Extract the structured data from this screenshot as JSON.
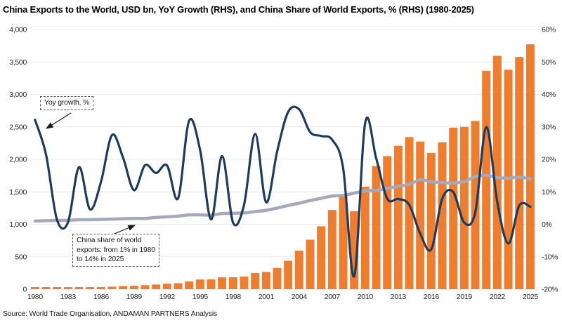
{
  "title": "China Exports to the World, USD bn, YoY Growth (RHS), and China Share of World Exports, % (RHS) (1980-2025)",
  "source": "Source: World Trade Organisation, ANDAMAN PARTNERS Analysis",
  "annotations": {
    "yoy": {
      "text": "Yoy growth, %"
    },
    "share": {
      "line1": "China share of world",
      "line2": "exports: from 1% in 1980",
      "line3": "to 14% in 2025"
    }
  },
  "colors": {
    "bar": "#ED7D31",
    "yoy_line": "#1F3B5C",
    "share_line": "#A6A9BB",
    "grid": "#E8E8E8",
    "axis_text": "#262626",
    "arrow": "#1a1a1a"
  },
  "chart_data": {
    "type": "bar",
    "title": "China Exports to the World, USD bn, YoY Growth (RHS), and China Share of World Exports, % (RHS) (1980-2025)",
    "x": [
      1980,
      1981,
      1982,
      1983,
      1984,
      1985,
      1986,
      1987,
      1988,
      1989,
      1990,
      1991,
      1992,
      1993,
      1994,
      1995,
      1996,
      1997,
      1998,
      1999,
      2000,
      2001,
      2002,
      2003,
      2004,
      2005,
      2006,
      2007,
      2008,
      2009,
      2010,
      2011,
      2012,
      2013,
      2014,
      2015,
      2016,
      2017,
      2018,
      2019,
      2020,
      2021,
      2022,
      2023,
      2024,
      2025
    ],
    "series": [
      {
        "name": "China exports to the world, USD bn",
        "type": "bar",
        "axis": "left",
        "values": [
          18,
          22,
          22,
          22,
          26,
          27,
          31,
          39,
          48,
          53,
          62,
          72,
          85,
          92,
          121,
          149,
          151,
          183,
          184,
          195,
          249,
          266,
          326,
          438,
          593,
          762,
          969,
          1220,
          1431,
          1202,
          1578,
          1898,
          2049,
          2209,
          2342,
          2274,
          2098,
          2263,
          2487,
          2499,
          2591,
          3364,
          3594,
          3380,
          3577,
          3772
        ]
      },
      {
        "name": "YoY growth, %",
        "type": "line",
        "axis": "right",
        "values": [
          32.2,
          21.5,
          1.4,
          0.6,
          17.6,
          4.6,
          13.1,
          27.5,
          20.5,
          10.5,
          18.2,
          15.8,
          18.1,
          8.0,
          31.9,
          22.9,
          1.5,
          21.0,
          0.5,
          6.1,
          27.8,
          6.8,
          22.4,
          34.6,
          35.4,
          28.4,
          27.2,
          26.0,
          17.2,
          -16.0,
          31.3,
          20.3,
          7.9,
          7.8,
          6.0,
          -2.9,
          -7.7,
          7.9,
          9.9,
          0.5,
          3.7,
          29.9,
          6.8,
          -5.9,
          5.8,
          5.4
        ]
      },
      {
        "name": "China share of world exports, %",
        "type": "line",
        "axis": "right",
        "values": [
          1.0,
          1.1,
          1.2,
          1.2,
          1.4,
          1.4,
          1.5,
          1.6,
          1.7,
          1.8,
          1.8,
          2.1,
          2.3,
          2.5,
          2.9,
          2.9,
          2.8,
          3.3,
          3.4,
          3.5,
          3.9,
          4.3,
          5.0,
          5.8,
          6.5,
          7.3,
          8.0,
          8.7,
          8.9,
          9.6,
          10.3,
          10.4,
          11.1,
          11.7,
          12.3,
          13.7,
          13.1,
          12.8,
          12.7,
          13.1,
          14.7,
          15.1,
          14.4,
          14.2,
          14.5,
          14.0
        ]
      }
    ],
    "left_axis": {
      "range": [
        0,
        4000
      ],
      "ticks": [
        "4,000",
        "3,500",
        "3,000",
        "2,500",
        "2,000",
        "1,500",
        "1,000",
        "500",
        "0"
      ]
    },
    "right_axis": {
      "range": [
        -20,
        60
      ],
      "ticks": [
        "60%",
        "50%",
        "40%",
        "30%",
        "20%",
        "10%",
        "0%",
        "-10%",
        "-20%"
      ]
    },
    "x_ticks": [
      "1980",
      "1983",
      "1986",
      "1989",
      "1992",
      "1995",
      "1998",
      "2001",
      "2004",
      "2007",
      "2010",
      "2013",
      "2016",
      "2019",
      "2022",
      "2025"
    ],
    "grid": true,
    "legend_position": "none (dashed callout labels on plot)"
  }
}
